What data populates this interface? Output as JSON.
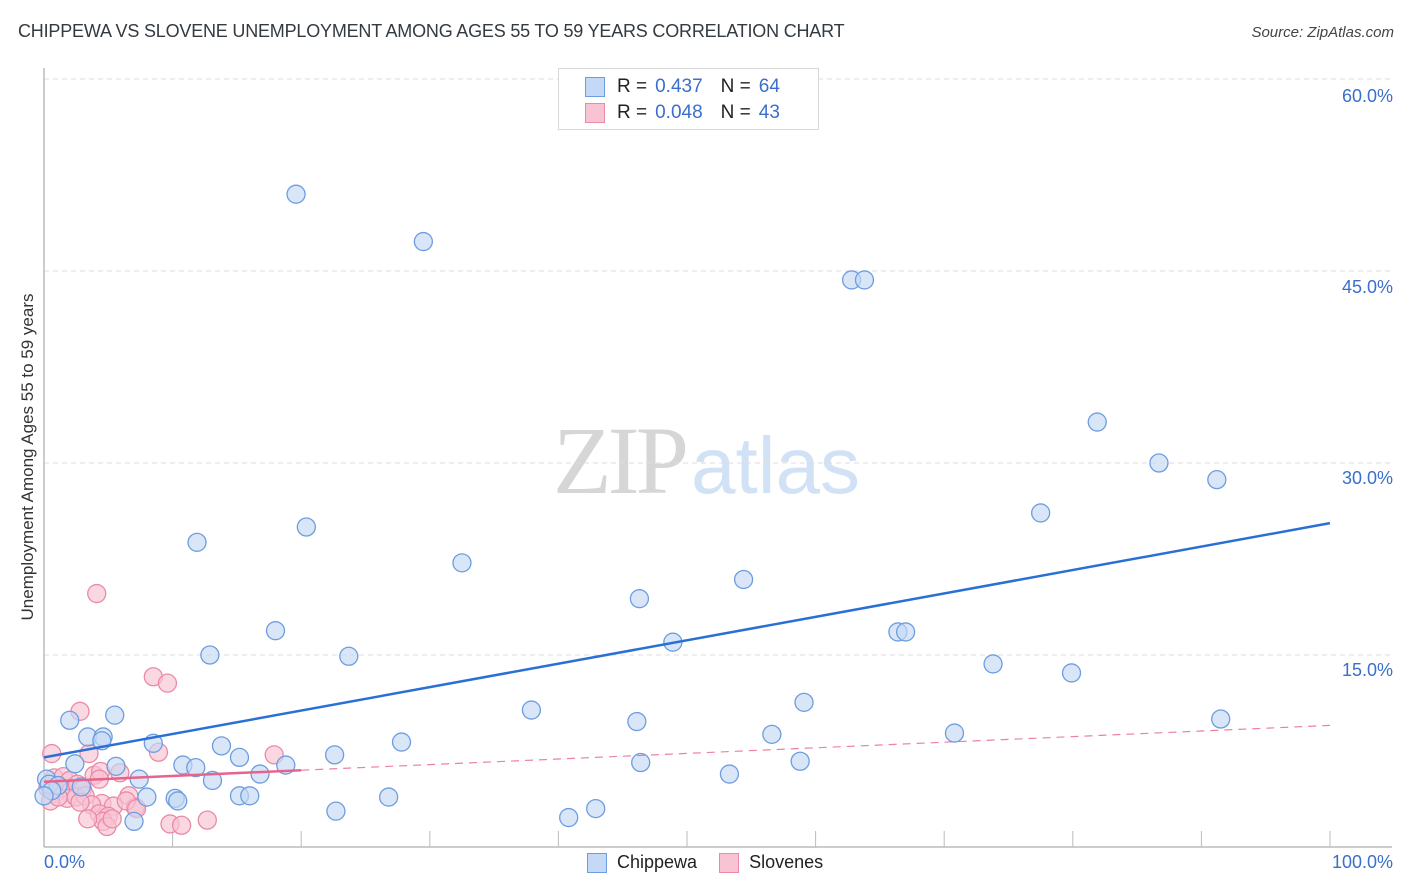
{
  "header": {
    "title": "CHIPPEWA VS SLOVENE UNEMPLOYMENT AMONG AGES 55 TO 59 YEARS CORRELATION CHART",
    "source": "Source: ZipAtlas.com"
  },
  "watermark": {
    "zip": "ZIP",
    "atlas": "atlas"
  },
  "legend": {
    "rows": [
      {
        "r_label": "R = ",
        "r_value": "0.437",
        "n_label": "N = ",
        "n_value": "64"
      },
      {
        "r_label": "R = ",
        "r_value": "0.048",
        "n_label": "N = ",
        "n_value": "43"
      }
    ]
  },
  "bottom_legend": {
    "items": [
      {
        "label": "Chippewa"
      },
      {
        "label": "Slovenes"
      }
    ]
  },
  "axes": {
    "y_label": "Unemployment Among Ages 55 to 59 years",
    "y_ticks": [
      "60.0%",
      "45.0%",
      "30.0%",
      "15.0%"
    ],
    "x_min_label": "0.0%",
    "x_max_label": "100.0%"
  },
  "colors": {
    "chippewa_fill": "#c4d9f5",
    "chippewa_stroke": "#6d9de0",
    "chippewa_line": "#2a6fd6",
    "slovenes_fill": "#f8c3d2",
    "slovenes_stroke": "#eb8aa7",
    "slovenes_line": "#e8628c",
    "tick_label": "#3a6fcc"
  },
  "chart_data": {
    "type": "scatter",
    "title": "CHIPPEWA VS SLOVENE UNEMPLOYMENT AMONG AGES 55 TO 59 YEARS CORRELATION CHART",
    "xlabel": "",
    "ylabel": "Unemployment Among Ages 55 to 59 years",
    "xlim": [
      0,
      100
    ],
    "ylim": [
      0,
      62
    ],
    "x_tick_labels": [
      "0.0%",
      "100.0%"
    ],
    "y_tick_labels": [
      "15.0%",
      "30.0%",
      "45.0%",
      "60.0%"
    ],
    "grid": true,
    "legend_position": "top-center and bottom",
    "series": [
      {
        "name": "Chippewa",
        "R": 0.437,
        "N": 64,
        "trend": {
          "x": [
            0,
            100
          ],
          "y": [
            7.0,
            25.3
          ]
        },
        "points": [
          [
            19.6,
            51.0
          ],
          [
            29.5,
            47.3
          ],
          [
            62.8,
            44.3
          ],
          [
            63.8,
            44.3
          ],
          [
            81.9,
            33.2
          ],
          [
            86.7,
            30.0
          ],
          [
            91.2,
            28.7
          ],
          [
            77.5,
            26.1
          ],
          [
            20.4,
            25.0
          ],
          [
            11.9,
            23.8
          ],
          [
            32.5,
            22.2
          ],
          [
            54.4,
            20.9
          ],
          [
            46.3,
            19.4
          ],
          [
            18.0,
            16.9
          ],
          [
            66.4,
            16.8
          ],
          [
            67.0,
            16.8
          ],
          [
            48.9,
            16.0
          ],
          [
            12.9,
            15.0
          ],
          [
            23.7,
            14.9
          ],
          [
            73.8,
            14.3
          ],
          [
            79.9,
            13.6
          ],
          [
            2.0,
            9.9
          ],
          [
            5.5,
            10.3
          ],
          [
            37.9,
            10.7
          ],
          [
            59.1,
            11.3
          ],
          [
            46.1,
            9.8
          ],
          [
            91.5,
            10.0
          ],
          [
            3.4,
            8.6
          ],
          [
            4.6,
            8.6
          ],
          [
            4.5,
            8.3
          ],
          [
            56.6,
            8.8
          ],
          [
            70.8,
            8.9
          ],
          [
            8.5,
            8.1
          ],
          [
            13.8,
            7.9
          ],
          [
            27.8,
            8.2
          ],
          [
            2.4,
            6.5
          ],
          [
            22.6,
            7.2
          ],
          [
            15.2,
            7.0
          ],
          [
            58.8,
            6.7
          ],
          [
            46.4,
            6.6
          ],
          [
            5.6,
            6.3
          ],
          [
            10.8,
            6.4
          ],
          [
            11.8,
            6.2
          ],
          [
            18.8,
            6.4
          ],
          [
            53.3,
            5.7
          ],
          [
            16.8,
            5.7
          ],
          [
            7.4,
            5.3
          ],
          [
            13.1,
            5.2
          ],
          [
            0.2,
            5.3
          ],
          [
            0.4,
            4.9
          ],
          [
            1.1,
            4.8
          ],
          [
            0.6,
            4.4
          ],
          [
            0.0,
            4.0
          ],
          [
            2.9,
            4.7
          ],
          [
            10.2,
            3.8
          ],
          [
            8.0,
            3.9
          ],
          [
            15.2,
            4.0
          ],
          [
            16.0,
            4.0
          ],
          [
            10.4,
            3.6
          ],
          [
            26.8,
            3.9
          ],
          [
            22.7,
            2.8
          ],
          [
            42.9,
            3.0
          ],
          [
            7.0,
            2.0
          ],
          [
            40.8,
            2.3
          ]
        ]
      },
      {
        "name": "Slovenes",
        "R": 0.048,
        "N": 43,
        "trend": {
          "x": [
            0,
            20
          ],
          "y": [
            5.1,
            6.0
          ],
          "dashed_extension": {
            "x": [
              20,
              100
            ],
            "y": [
              6.0,
              9.5
            ]
          }
        },
        "points": [
          [
            4.1,
            19.8
          ],
          [
            8.5,
            13.3
          ],
          [
            9.6,
            12.8
          ],
          [
            2.8,
            10.6
          ],
          [
            3.5,
            7.3
          ],
          [
            0.6,
            7.3
          ],
          [
            8.9,
            7.4
          ],
          [
            17.9,
            7.2
          ],
          [
            0.8,
            5.4
          ],
          [
            1.5,
            5.5
          ],
          [
            2.0,
            5.2
          ],
          [
            3.9,
            5.6
          ],
          [
            4.4,
            5.9
          ],
          [
            5.9,
            5.8
          ],
          [
            0.3,
            4.6
          ],
          [
            0.9,
            4.2
          ],
          [
            1.4,
            4.6
          ],
          [
            2.1,
            4.4
          ],
          [
            2.6,
            4.9
          ],
          [
            3.0,
            4.5
          ],
          [
            4.3,
            5.3
          ],
          [
            1.8,
            3.8
          ],
          [
            2.5,
            3.9
          ],
          [
            3.2,
            4.0
          ],
          [
            0.5,
            3.6
          ],
          [
            4.5,
            3.4
          ],
          [
            3.7,
            3.3
          ],
          [
            2.8,
            3.5
          ],
          [
            1.1,
            3.9
          ],
          [
            6.6,
            4.0
          ],
          [
            5.4,
            3.2
          ],
          [
            7.1,
            3.1
          ],
          [
            4.3,
            2.6
          ],
          [
            5.0,
            2.4
          ],
          [
            4.6,
            2.0
          ],
          [
            4.9,
            1.6
          ],
          [
            5.3,
            2.2
          ],
          [
            6.4,
            3.6
          ],
          [
            7.2,
            3.0
          ],
          [
            9.8,
            1.8
          ],
          [
            10.7,
            1.7
          ],
          [
            12.7,
            2.1
          ],
          [
            3.4,
            2.2
          ]
        ]
      }
    ]
  }
}
